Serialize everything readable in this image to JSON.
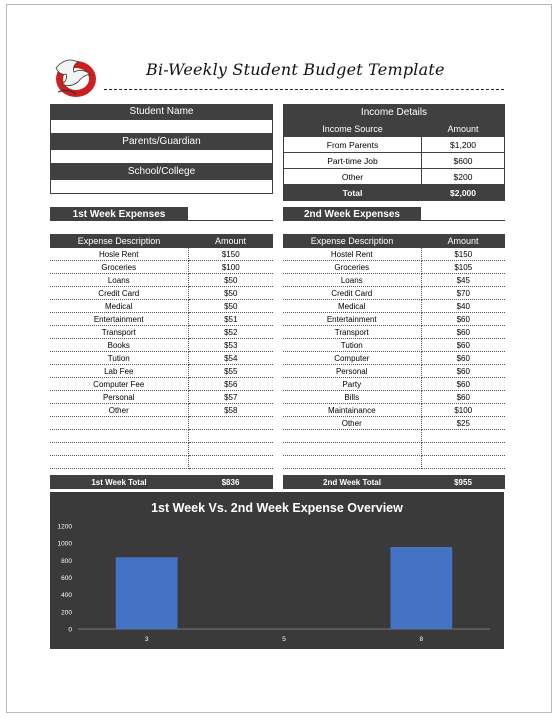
{
  "document": {
    "title": "Bi-Weekly Student Budget Template"
  },
  "student_info": {
    "student_name_label": "Student Name",
    "parents_label": "Parents/Guardian",
    "school_label": "School/College"
  },
  "income": {
    "header": "Income Details",
    "col_source": "Income Source",
    "col_amount": "Amount",
    "rows": [
      {
        "source": "From Parents",
        "amount": "$1,200"
      },
      {
        "source": "Part-time Job",
        "amount": "$600"
      },
      {
        "source": "Other",
        "amount": "$200"
      }
    ],
    "total_label": "Total",
    "total_value": "$2,000"
  },
  "week1": {
    "section_label": "1st Week Expenses",
    "col_desc": "Expense Description",
    "col_amount": "Amount",
    "rows": [
      {
        "desc": "Hosle Rent",
        "amount": "$150"
      },
      {
        "desc": "Groceries",
        "amount": "$100"
      },
      {
        "desc": "Loans",
        "amount": "$50"
      },
      {
        "desc": "Credit Card",
        "amount": "$50"
      },
      {
        "desc": "Medical",
        "amount": "$50"
      },
      {
        "desc": "Entertainment",
        "amount": "$51"
      },
      {
        "desc": "Transport",
        "amount": "$52"
      },
      {
        "desc": "Books",
        "amount": "$53"
      },
      {
        "desc": "Tution",
        "amount": "$54"
      },
      {
        "desc": "Lab Fee",
        "amount": "$55"
      },
      {
        "desc": "Computer Fee",
        "amount": "$56"
      },
      {
        "desc": "Personal",
        "amount": "$57"
      },
      {
        "desc": "Other",
        "amount": "$58"
      },
      {
        "desc": "",
        "amount": ""
      },
      {
        "desc": "",
        "amount": ""
      },
      {
        "desc": "",
        "amount": ""
      },
      {
        "desc": "",
        "amount": ""
      }
    ],
    "total_label": "1st Week Total",
    "total_value": "$836"
  },
  "week2": {
    "section_label": "2nd Week Expenses",
    "col_desc": "Expense Description",
    "col_amount": "Amount",
    "rows": [
      {
        "desc": "Hostel Rent",
        "amount": "$150"
      },
      {
        "desc": "Groceries",
        "amount": "$105"
      },
      {
        "desc": "Loans",
        "amount": "$45"
      },
      {
        "desc": "Credit Card",
        "amount": "$70"
      },
      {
        "desc": "Medical",
        "amount": "$40"
      },
      {
        "desc": "Entertainment",
        "amount": "$60"
      },
      {
        "desc": "Transport",
        "amount": "$60"
      },
      {
        "desc": "Tution",
        "amount": "$60"
      },
      {
        "desc": "Computer",
        "amount": "$60"
      },
      {
        "desc": "Personal",
        "amount": "$60"
      },
      {
        "desc": "Party",
        "amount": "$60"
      },
      {
        "desc": "Bills",
        "amount": "$60"
      },
      {
        "desc": "Maintainance",
        "amount": "$100"
      },
      {
        "desc": "Other",
        "amount": "$25"
      },
      {
        "desc": "",
        "amount": ""
      },
      {
        "desc": "",
        "amount": ""
      },
      {
        "desc": "",
        "amount": ""
      }
    ],
    "total_label": "2nd Week Total",
    "total_value": "$955"
  },
  "chart_data": {
    "type": "bar",
    "title": "1st Week Vs. 2nd Week Expense Overview",
    "categories": [
      "3",
      "5",
      "8"
    ],
    "series": [
      {
        "values": [
          836,
          0,
          955
        ]
      }
    ],
    "ylim": [
      0,
      1200
    ],
    "yticks": [
      "0",
      "200",
      "400",
      "600",
      "800",
      "1000",
      "1200"
    ],
    "grid": false,
    "colors": {
      "bar": "#4472c4",
      "background": "#3a3a3a",
      "text": "#ffffff"
    }
  }
}
